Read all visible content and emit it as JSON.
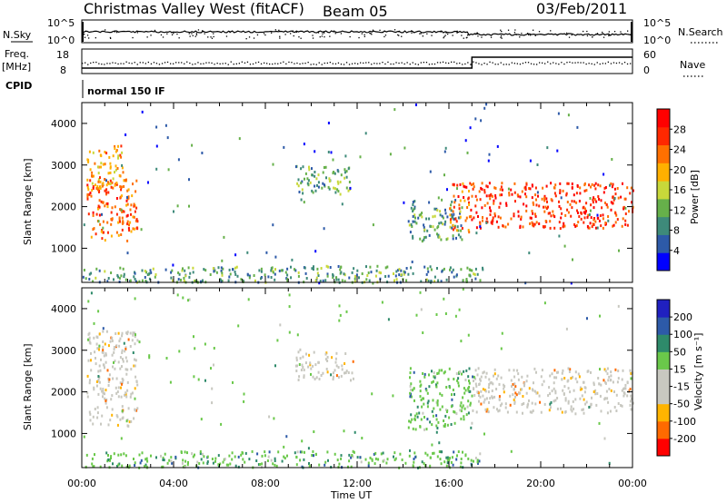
{
  "header": {
    "station": "Christmas Valley West (fitACF)",
    "beam": "Beam 05",
    "date": "03/Feb/2011"
  },
  "top_panel": {
    "left_label": "N.Sky",
    "right_label": "N.Search",
    "left_ticks": [
      "10^5",
      "10^0"
    ],
    "right_ticks": [
      "10^5",
      "10^0"
    ]
  },
  "freq_panel": {
    "left_label_line1": "Freq.",
    "left_label_line2": "[MHz]",
    "right_label": "Nave",
    "left_ticks": [
      "18",
      "8"
    ],
    "right_ticks": [
      "60",
      "0"
    ]
  },
  "cpid": {
    "label": "CPID",
    "value": "normal 150 IF"
  },
  "chart_data": [
    {
      "type": "heatmap",
      "title": "Power",
      "ylabel": "Slant Range [km]",
      "xlabel": "Time UT",
      "ylim": [
        180,
        4500
      ],
      "y_ticks": [
        "1000",
        "2000",
        "3000",
        "4000"
      ],
      "x_ticks": [
        "00:00",
        "04:00",
        "08:00",
        "12:00",
        "16:00",
        "20:00",
        "00:00"
      ],
      "colorbar_label": "Power [dB]",
      "colorbar_ticks": [
        "28",
        "24",
        "20",
        "16",
        "12",
        "8",
        "4"
      ],
      "colorbar_colors": [
        "#0000ff",
        "#2d5aa8",
        "#3e8a7a",
        "#66b04a",
        "#c8d83a",
        "#ffb000",
        "#ff7000",
        "#ff2800",
        "#ff0000"
      ],
      "features": [
        {
          "hours": [
            0.2,
            2.4
          ],
          "range_km": [
            1200,
            2700
          ],
          "level": 0.78
        },
        {
          "hours": [
            0.2,
            1.8
          ],
          "range_km": [
            2400,
            3500
          ],
          "level": 0.65
        },
        {
          "hours": [
            9.3,
            11.8
          ],
          "range_km": [
            2300,
            3000
          ],
          "level": 0.35
        },
        {
          "hours": [
            14.2,
            16.6
          ],
          "range_km": [
            1200,
            2200
          ],
          "level": 0.3
        },
        {
          "hours": [
            16.0,
            17.0
          ],
          "range_km": [
            1400,
            2600
          ],
          "level": 0.8
        },
        {
          "hours": [
            17.0,
            24.0
          ],
          "range_km": [
            1500,
            2600
          ],
          "level": 0.88
        },
        {
          "hours": [
            0.0,
            17.5
          ],
          "range_km": [
            200,
            600
          ],
          "level": 0.3
        }
      ]
    },
    {
      "type": "heatmap",
      "title": "Velocity",
      "ylabel": "Slant Range [km]",
      "xlabel": "Time UT",
      "ylim": [
        180,
        4500
      ],
      "y_ticks": [
        "1000",
        "2000",
        "3000",
        "4000"
      ],
      "x_ticks": [
        "00:00",
        "04:00",
        "08:00",
        "12:00",
        "16:00",
        "20:00",
        "00:00"
      ],
      "colorbar_label": "Velocity [m s⁻¹]",
      "colorbar_ticks": [
        "200",
        "100",
        "50",
        "15",
        "-15",
        "-50",
        "-100",
        "-200"
      ],
      "colorbar_colors": [
        "#ff0000",
        "#ff6a00",
        "#ffb400",
        "#c8c8c0",
        "#c8c8c0",
        "#6ac84a",
        "#2e8a6a",
        "#2d5aa8",
        "#2020c0"
      ],
      "features": [
        {
          "hours": [
            0.2,
            2.4
          ],
          "range_km": [
            1200,
            3500
          ],
          "class": "ground"
        },
        {
          "hours": [
            9.3,
            11.8
          ],
          "range_km": [
            2300,
            3000
          ],
          "class": "ground"
        },
        {
          "hours": [
            14.2,
            17.0
          ],
          "range_km": [
            1100,
            2600
          ],
          "class": "positive"
        },
        {
          "hours": [
            17.0,
            24.0
          ],
          "range_km": [
            1500,
            2600
          ],
          "class": "ground"
        },
        {
          "hours": [
            0.0,
            17.5
          ],
          "range_km": [
            200,
            600
          ],
          "class": "positive"
        }
      ]
    }
  ]
}
